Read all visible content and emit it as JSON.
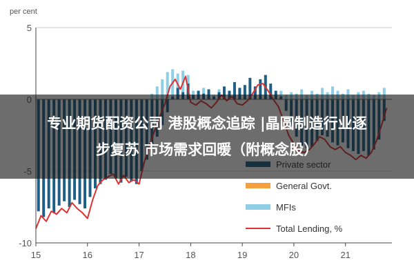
{
  "overlay": {
    "line1": "专业期货配资公司 港股概念追踪 |晶圆制造行业逐",
    "line2": "步复苏   市场需求回暖（附概念股）"
  },
  "chart_data": {
    "type": "bar",
    "unit_label": "per cent",
    "ylim": [
      -10,
      5
    ],
    "yticks": [
      5,
      0,
      -5,
      -10
    ],
    "x_tick_labels": [
      "15",
      "16",
      "17",
      "18",
      "19",
      "20",
      "21"
    ],
    "x_tick_values": [
      2015,
      2016,
      2017,
      2018,
      2019,
      2020,
      2021
    ],
    "xlim": [
      2015,
      2021.9
    ],
    "legend_position": "bottom-right",
    "colors": {
      "private_sector": "#1f5f86",
      "general_govt": "#f4a040",
      "mfis": "#8ecfe6",
      "total_lending": "#e03030",
      "grid": "#cccccc",
      "axis": "#444444"
    },
    "series": [
      {
        "name": "Private sector",
        "style": "bar",
        "x": [
          2015.05,
          2015.15,
          2015.25,
          2015.35,
          2015.45,
          2015.55,
          2015.65,
          2015.75,
          2015.85,
          2015.95,
          2016.05,
          2016.15,
          2016.25,
          2016.35,
          2016.45,
          2016.55,
          2016.65,
          2016.75,
          2016.85,
          2016.95,
          2017.05,
          2017.15,
          2017.25,
          2017.35,
          2017.45,
          2017.55,
          2017.65,
          2017.75,
          2017.85,
          2017.95,
          2018.05,
          2018.15,
          2018.25,
          2018.35,
          2018.45,
          2018.55,
          2018.65,
          2018.75,
          2018.85,
          2018.95,
          2019.05,
          2019.15,
          2019.25,
          2019.35,
          2019.45,
          2019.55,
          2019.65,
          2019.75,
          2019.85,
          2019.95,
          2020.05,
          2020.15,
          2020.25,
          2020.35,
          2020.45,
          2020.55,
          2020.65,
          2020.75,
          2020.85,
          2020.95,
          2021.05,
          2021.15,
          2021.25,
          2021.35,
          2021.45,
          2021.55,
          2021.65,
          2021.75
        ],
        "values": [
          -7.8,
          -8.2,
          -7.6,
          -7.9,
          -7.4,
          -7.1,
          -7.5,
          -7.0,
          -7.3,
          -7.6,
          -6.8,
          -6.2,
          -5.9,
          -5.6,
          -5.2,
          -5.5,
          -5.8,
          -5.4,
          -5.7,
          -5.9,
          -5.0,
          -4.2,
          -3.5,
          -2.6,
          -1.8,
          -0.9,
          0.2,
          0.8,
          0.5,
          1.1,
          0.3,
          0.6,
          0.4,
          0.7,
          0.2,
          0.5,
          0.9,
          0.6,
          1.2,
          0.8,
          1.0,
          1.5,
          0.9,
          1.4,
          1.7,
          1.1,
          0.6,
          0.2,
          -0.8,
          -1.8,
          -2.6,
          -3.2,
          -3.4,
          -3.3,
          -2.9,
          -2.5,
          -2.6,
          -3.0,
          -3.2,
          -3.0,
          -3.4,
          -3.6,
          -3.8,
          -3.6,
          -3.9,
          -3.5,
          -2.8,
          -1.5
        ]
      },
      {
        "name": "General Govt.",
        "style": "bar",
        "x": [],
        "values": []
      },
      {
        "name": "MFIs",
        "style": "bar",
        "x": [
          2015.05,
          2015.15,
          2015.25,
          2015.35,
          2015.45,
          2015.55,
          2015.65,
          2015.75,
          2015.85,
          2015.95,
          2016.05,
          2016.15,
          2016.25,
          2016.35,
          2016.45,
          2016.55,
          2016.65,
          2016.75,
          2016.85,
          2016.95,
          2017.05,
          2017.15,
          2017.25,
          2017.35,
          2017.45,
          2017.55,
          2017.65,
          2017.75,
          2017.85,
          2017.95,
          2018.05,
          2018.15,
          2018.25,
          2018.35,
          2018.45,
          2018.55,
          2018.65,
          2018.75,
          2018.85,
          2018.95,
          2019.05,
          2019.15,
          2019.25,
          2019.35,
          2019.45,
          2019.55,
          2019.65,
          2019.75,
          2019.85,
          2019.95,
          2020.05,
          2020.15,
          2020.25,
          2020.35,
          2020.45,
          2020.55,
          2020.65,
          2020.75,
          2020.85,
          2020.95,
          2021.05,
          2021.15,
          2021.25,
          2021.35,
          2021.45,
          2021.55,
          2021.65,
          2021.75
        ],
        "values": [
          -0.8,
          -0.6,
          -0.7,
          -0.5,
          -0.9,
          -0.6,
          -0.4,
          -0.7,
          -0.5,
          -0.8,
          -0.6,
          -0.5,
          -0.4,
          -0.6,
          -0.3,
          -0.5,
          -0.4,
          -0.3,
          -0.5,
          -0.4,
          -0.3,
          -0.2,
          0.4,
          0.9,
          1.4,
          1.9,
          2.1,
          1.8,
          2.0,
          1.7,
          0.6,
          0.4,
          0.8,
          0.5,
          0.3,
          0.7,
          0.4,
          0.6,
          0.5,
          0.8,
          0.6,
          0.4,
          0.9,
          0.3,
          0.5,
          0.7,
          0.4,
          0.6,
          0.3,
          0.5,
          0.4,
          0.7,
          0.3,
          0.6,
          0.4,
          0.8,
          0.5,
          0.9,
          0.6,
          0.4,
          0.7,
          0.3,
          0.5,
          0.6,
          0.4,
          0.3,
          0.5,
          0.8
        ]
      },
      {
        "name": "Total Lending, %",
        "style": "line",
        "x": [
          2015.0,
          2015.1,
          2015.2,
          2015.3,
          2015.4,
          2015.5,
          2015.6,
          2015.7,
          2015.8,
          2015.9,
          2016.0,
          2016.1,
          2016.2,
          2016.3,
          2016.4,
          2016.5,
          2016.6,
          2016.7,
          2016.8,
          2016.9,
          2017.0,
          2017.1,
          2017.2,
          2017.3,
          2017.4,
          2017.5,
          2017.6,
          2017.7,
          2017.8,
          2017.9,
          2018.0,
          2018.1,
          2018.2,
          2018.3,
          2018.4,
          2018.5,
          2018.6,
          2018.7,
          2018.8,
          2018.9,
          2019.0,
          2019.1,
          2019.2,
          2019.3,
          2019.4,
          2019.5,
          2019.6,
          2019.7,
          2019.8,
          2019.9,
          2020.0,
          2020.1,
          2020.2,
          2020.3,
          2020.4,
          2020.5,
          2020.6,
          2020.7,
          2020.8,
          2020.9,
          2021.0,
          2021.1,
          2021.2,
          2021.3,
          2021.4,
          2021.5,
          2021.6,
          2021.7,
          2021.8
        ],
        "values": [
          -9.0,
          -8.1,
          -8.5,
          -7.8,
          -8.0,
          -7.6,
          -7.9,
          -7.2,
          -7.6,
          -7.9,
          -8.3,
          -7.0,
          -6.0,
          -5.6,
          -5.4,
          -5.2,
          -5.9,
          -5.3,
          -5.8,
          -5.6,
          -5.9,
          -4.4,
          -3.2,
          -2.2,
          -1.2,
          -0.3,
          0.9,
          1.4,
          0.7,
          1.6,
          -0.2,
          -0.4,
          -0.1,
          -0.3,
          -0.6,
          -0.2,
          0.3,
          -0.1,
          0.2,
          -0.3,
          -0.4,
          -0.1,
          0.4,
          1.0,
          1.1,
          0.6,
          0.0,
          -0.5,
          -1.5,
          -2.5,
          -3.1,
          -3.6,
          -3.7,
          -3.5,
          -3.1,
          -2.6,
          -2.8,
          -3.3,
          -3.5,
          -3.3,
          -3.7,
          -3.9,
          -4.2,
          -3.9,
          -4.1,
          -3.7,
          -2.9,
          -1.8,
          -0.6
        ]
      }
    ]
  }
}
